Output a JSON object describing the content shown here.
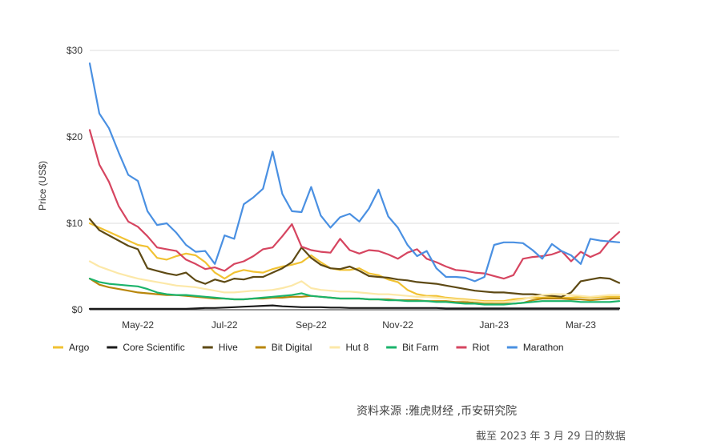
{
  "chart_data": {
    "type": "line",
    "ylabel": "Price (US$)",
    "ylim": [
      0,
      30
    ],
    "yticks": [
      0,
      10,
      20,
      30
    ],
    "ytick_labels": [
      "$0",
      "$10",
      "$20",
      "$30"
    ],
    "xticks": [
      "May-22",
      "Jul-22",
      "Sep-22",
      "Nov-22",
      "Jan-23",
      "Mar-23"
    ],
    "xtick_index": [
      5,
      14,
      23,
      32,
      42,
      51
    ],
    "n_points": 56,
    "grid": true,
    "legend": "bottom",
    "series": [
      {
        "name": "Argo",
        "color": "#f1c232",
        "values": [
          10.0,
          9.5,
          9.0,
          8.5,
          8.0,
          7.5,
          7.3,
          6.0,
          5.8,
          6.2,
          6.5,
          6.3,
          5.5,
          4.3,
          3.6,
          4.3,
          4.6,
          4.4,
          4.3,
          4.7,
          5.0,
          5.2,
          5.5,
          6.3,
          5.5,
          4.8,
          4.6,
          4.6,
          4.8,
          4.2,
          4.0,
          3.5,
          3.2,
          2.3,
          1.8,
          1.6,
          1.6,
          1.4,
          1.3,
          1.2,
          1.1,
          1.0,
          1.0,
          1.0,
          1.2,
          1.3,
          1.4,
          1.4,
          1.5,
          1.4,
          1.4,
          1.5,
          1.4,
          1.5,
          1.5,
          1.5
        ]
      },
      {
        "name": "Core Scientific",
        "color": "#1a1a1a",
        "values": [
          0.1,
          0.1,
          0.1,
          0.1,
          0.1,
          0.1,
          0.1,
          0.1,
          0.1,
          0.1,
          0.1,
          0.15,
          0.2,
          0.2,
          0.25,
          0.3,
          0.35,
          0.4,
          0.45,
          0.5,
          0.4,
          0.35,
          0.3,
          0.3,
          0.3,
          0.25,
          0.25,
          0.2,
          0.2,
          0.2,
          0.2,
          0.2,
          0.2,
          0.2,
          0.2,
          0.2,
          0.2,
          0.15,
          0.15,
          0.15,
          0.15,
          0.15,
          0.15,
          0.15,
          0.15,
          0.15,
          0.15,
          0.15,
          0.15,
          0.15,
          0.15,
          0.15,
          0.15,
          0.15,
          0.15,
          0.15
        ]
      },
      {
        "name": "Hive",
        "color": "#5e4a15",
        "values": [
          10.5,
          9.2,
          8.6,
          8.0,
          7.4,
          7.0,
          4.8,
          4.5,
          4.2,
          4.0,
          4.3,
          3.4,
          3.0,
          3.5,
          3.2,
          3.6,
          3.5,
          3.8,
          3.8,
          4.3,
          4.8,
          5.5,
          7.2,
          6.0,
          5.2,
          4.8,
          4.7,
          5.0,
          4.5,
          3.9,
          3.8,
          3.7,
          3.5,
          3.4,
          3.2,
          3.1,
          3.0,
          2.8,
          2.6,
          2.4,
          2.2,
          2.1,
          2.0,
          2.0,
          1.9,
          1.8,
          1.8,
          1.7,
          1.6,
          1.5,
          2.0,
          3.3,
          3.5,
          3.7,
          3.6,
          3.1
        ]
      },
      {
        "name": "Bit Digital",
        "color": "#b8860b",
        "values": [
          3.6,
          2.9,
          2.6,
          2.4,
          2.2,
          2.0,
          1.9,
          1.8,
          1.7,
          1.7,
          1.6,
          1.5,
          1.4,
          1.3,
          1.3,
          1.2,
          1.2,
          1.3,
          1.3,
          1.4,
          1.4,
          1.5,
          1.5,
          1.6,
          1.5,
          1.4,
          1.3,
          1.3,
          1.3,
          1.2,
          1.2,
          1.2,
          1.1,
          1.1,
          1.1,
          1.0,
          1.0,
          1.0,
          0.9,
          0.9,
          0.8,
          0.8,
          0.7,
          0.7,
          0.7,
          0.8,
          1.1,
          1.3,
          1.3,
          1.3,
          1.2,
          1.2,
          1.1,
          1.2,
          1.3,
          1.3
        ]
      },
      {
        "name": "Hut 8",
        "color": "#fce8a8",
        "values": [
          5.6,
          5.0,
          4.6,
          4.2,
          3.9,
          3.6,
          3.4,
          3.2,
          3.0,
          2.8,
          2.7,
          2.6,
          2.4,
          2.2,
          2.0,
          2.0,
          2.1,
          2.2,
          2.2,
          2.3,
          2.5,
          2.8,
          3.3,
          2.5,
          2.3,
          2.2,
          2.1,
          2.1,
          2.0,
          1.9,
          1.8,
          1.8,
          1.7,
          1.6,
          1.5,
          1.5,
          1.4,
          1.3,
          1.2,
          1.1,
          1.0,
          0.9,
          0.9,
          0.9,
          1.0,
          1.2,
          1.5,
          1.7,
          1.8,
          1.8,
          1.7,
          1.6,
          1.5,
          1.6,
          1.7,
          1.7
        ]
      },
      {
        "name": "Bit Farm",
        "color": "#1ab36b",
        "values": [
          3.6,
          3.2,
          3.0,
          2.9,
          2.8,
          2.7,
          2.4,
          2.0,
          1.8,
          1.7,
          1.7,
          1.6,
          1.5,
          1.4,
          1.3,
          1.2,
          1.2,
          1.3,
          1.4,
          1.5,
          1.6,
          1.7,
          1.9,
          1.6,
          1.5,
          1.4,
          1.3,
          1.3,
          1.3,
          1.2,
          1.2,
          1.1,
          1.1,
          1.0,
          1.0,
          1.0,
          0.9,
          0.9,
          0.8,
          0.7,
          0.7,
          0.6,
          0.6,
          0.6,
          0.7,
          0.8,
          0.9,
          1.0,
          1.0,
          1.0,
          1.0,
          0.9,
          0.9,
          0.9,
          0.9,
          1.0
        ]
      },
      {
        "name": "Riot",
        "color": "#d64560",
        "values": [
          20.8,
          16.8,
          14.8,
          12.0,
          10.2,
          9.6,
          8.5,
          7.2,
          7.0,
          6.8,
          5.8,
          5.3,
          4.7,
          4.9,
          4.5,
          5.3,
          5.6,
          6.2,
          7.0,
          7.2,
          8.5,
          9.9,
          7.3,
          6.9,
          6.7,
          6.6,
          8.2,
          6.9,
          6.5,
          6.9,
          6.8,
          6.4,
          5.9,
          6.6,
          7.0,
          5.9,
          5.5,
          5.0,
          4.6,
          4.5,
          4.3,
          4.2,
          3.9,
          3.6,
          4.0,
          5.9,
          6.1,
          6.2,
          6.4,
          6.8,
          5.6,
          6.7,
          6.1,
          6.6,
          8.0,
          9.0
        ]
      },
      {
        "name": "Marathon",
        "color": "#4a90e2",
        "values": [
          28.5,
          22.7,
          21.0,
          18.2,
          15.6,
          14.9,
          11.4,
          9.8,
          10.0,
          8.9,
          7.5,
          6.7,
          6.8,
          5.3,
          8.6,
          8.2,
          12.2,
          13.0,
          14.0,
          18.3,
          13.4,
          11.4,
          11.3,
          14.2,
          10.9,
          9.5,
          10.7,
          11.1,
          10.2,
          11.7,
          13.9,
          10.8,
          9.5,
          7.5,
          6.2,
          6.8,
          4.8,
          3.8,
          3.8,
          3.7,
          3.3,
          3.8,
          7.5,
          7.8,
          7.8,
          7.7,
          6.9,
          5.9,
          7.6,
          6.8,
          6.3,
          5.3,
          8.2,
          8.0,
          7.9,
          7.8
        ]
      }
    ]
  },
  "source_text": "资料来源 :雅虎财经 ,币安研究院",
  "asof_text": "截至 2023 年 3 月 29 日的数据"
}
